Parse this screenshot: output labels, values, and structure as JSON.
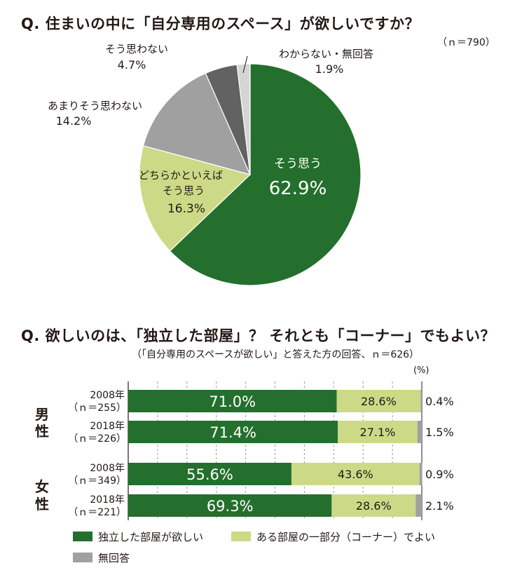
{
  "chart_data": [
    {
      "type": "pie",
      "title": "Q. 住まいの中に「自分専用のスペース」が欲しいですか？",
      "n_note": "（ｎ＝790）",
      "slices": [
        {
          "label": "そう思う",
          "value": 62.9,
          "value_text": "62.9%",
          "color": "#246f2d"
        },
        {
          "label": "どちらかといえば そう思う",
          "label_lines": [
            "どちらかといえば",
            "そう思う"
          ],
          "value": 16.3,
          "value_text": "16.3%",
          "color": "#ccda87"
        },
        {
          "label": "あまりそう思わない",
          "value": 14.2,
          "value_text": "14.2%",
          "color": "#a0a0a0"
        },
        {
          "label": "そう思わない",
          "value": 4.7,
          "value_text": "4.7%",
          "color": "#626262"
        },
        {
          "label": "わからない・無回答",
          "value": 1.9,
          "value_text": "1.9%",
          "color": "#d5d5d5"
        }
      ]
    },
    {
      "type": "bar",
      "orientation": "horizontal",
      "stacked": true,
      "title": "Q. 欲しいのは、「独立した部屋」？ それとも「コーナー」でもよい？",
      "subtitle": "（「自分専用のスペースが欲しい」と答えた方の回答、ｎ＝626）",
      "unit": "(%)",
      "groups": [
        {
          "label": "男性",
          "label_chars": [
            "男",
            "性"
          ],
          "rows": [
            {
              "year": "2008年",
              "n": "（ｎ＝255）",
              "values": [
                71.0,
                28.6,
                0.4
              ],
              "texts": [
                "71.0%",
                "28.6%",
                "0.4%"
              ]
            },
            {
              "year": "2018年",
              "n": "（ｎ＝226）",
              "values": [
                71.4,
                27.1,
                1.5
              ],
              "texts": [
                "71.4%",
                "27.1%",
                "1.5%"
              ]
            }
          ]
        },
        {
          "label": "女性",
          "label_chars": [
            "女",
            "性"
          ],
          "rows": [
            {
              "year": "2008年",
              "n": "（ｎ＝349）",
              "values": [
                55.6,
                43.6,
                0.9
              ],
              "texts": [
                "55.6%",
                "43.6%",
                "0.9%"
              ]
            },
            {
              "year": "2018年",
              "n": "（ｎ＝221）",
              "values": [
                69.3,
                28.6,
                2.1
              ],
              "texts": [
                "69.3%",
                "28.6%",
                "2.1%"
              ]
            }
          ]
        }
      ],
      "series": [
        {
          "name": "独立した部屋が欲しい",
          "color": "#246f2d"
        },
        {
          "name": "ある部屋の一部分（コーナー）でよい",
          "color": "#ccda87"
        },
        {
          "name": "無回答",
          "color": "#a0a0a0"
        }
      ],
      "xlim": [
        0,
        100
      ],
      "grid": true
    }
  ]
}
